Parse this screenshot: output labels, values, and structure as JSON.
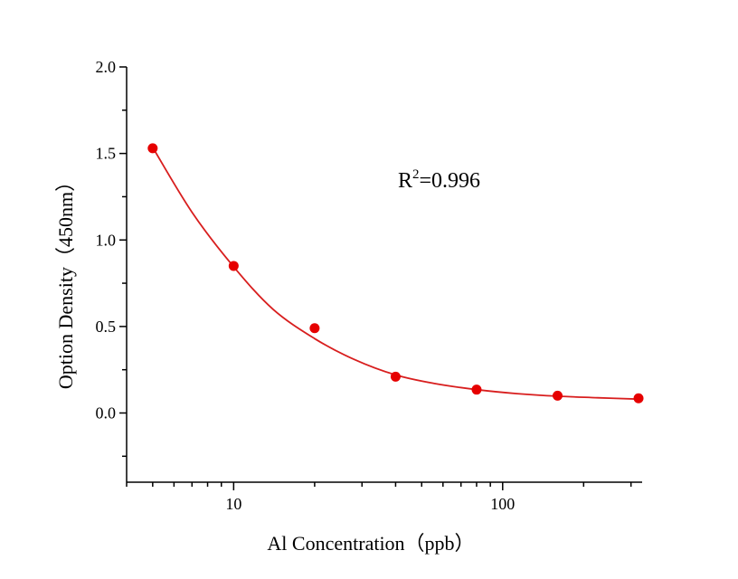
{
  "chart_data": {
    "type": "scatter",
    "xlabel": "Al Concentration（ppb）",
    "ylabel": "Option Density（450nm）",
    "x_scale": "log",
    "xlim": [
      4,
      330
    ],
    "ylim": [
      -0.4,
      2.0
    ],
    "x_ticks": [
      10,
      100
    ],
    "x_tick_labels": [
      "10",
      "100"
    ],
    "y_ticks": [
      0.0,
      0.5,
      1.0,
      1.5,
      2.0
    ],
    "y_tick_labels": [
      "0.0",
      "0.5",
      "1.0",
      "1.5",
      "2.0"
    ],
    "grid": false,
    "annotation": {
      "text_base": "R",
      "text_sup": "2",
      "text_rest": "=0.996"
    },
    "series": [
      {
        "points": [
          {
            "x": 5,
            "y": 1.53
          },
          {
            "x": 10,
            "y": 0.85
          },
          {
            "x": 20,
            "y": 0.49
          },
          {
            "x": 40,
            "y": 0.21
          },
          {
            "x": 80,
            "y": 0.135
          },
          {
            "x": 160,
            "y": 0.1
          },
          {
            "x": 320,
            "y": 0.085
          }
        ],
        "fit_curve": [
          {
            "x": 5,
            "y": 1.535
          },
          {
            "x": 7,
            "y": 1.16
          },
          {
            "x": 10,
            "y": 0.845
          },
          {
            "x": 14,
            "y": 0.6
          },
          {
            "x": 20,
            "y": 0.43
          },
          {
            "x": 28,
            "y": 0.31
          },
          {
            "x": 40,
            "y": 0.22
          },
          {
            "x": 56,
            "y": 0.17
          },
          {
            "x": 80,
            "y": 0.135
          },
          {
            "x": 113,
            "y": 0.112
          },
          {
            "x": 160,
            "y": 0.097
          },
          {
            "x": 226,
            "y": 0.088
          },
          {
            "x": 320,
            "y": 0.08
          }
        ],
        "color": "#e60000",
        "line_color": "#d81e1e"
      }
    ]
  }
}
